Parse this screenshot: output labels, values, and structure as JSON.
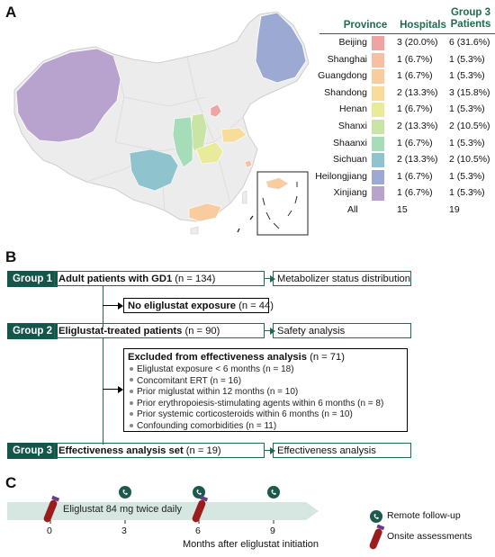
{
  "panels": {
    "a": "A",
    "b": "B",
    "c": "C"
  },
  "table": {
    "headers": {
      "province": "Province",
      "hospitals": "Hospitals",
      "group3_line1": "Group 3",
      "group3_line2": "Patients"
    },
    "rows": [
      {
        "province": "Beijing",
        "hospitals": "3 (20.0%)",
        "patients": "6 (31.6%)",
        "color": "#f1a2a2"
      },
      {
        "province": "Shanghai",
        "hospitals": "1 (6.7%)",
        "patients": "1 (5.3%)",
        "color": "#f8bfa3"
      },
      {
        "province": "Guangdong",
        "hospitals": "1 (6.7%)",
        "patients": "1 (5.3%)",
        "color": "#f9cca0"
      },
      {
        "province": "Shandong",
        "hospitals": "2 (13.3%)",
        "patients": "3 (15.8%)",
        "color": "#f7dc9a"
      },
      {
        "province": "Henan",
        "hospitals": "1 (6.7%)",
        "patients": "1 (5.3%)",
        "color": "#e8ec9a"
      },
      {
        "province": "Shanxi",
        "hospitals": "2 (13.3%)",
        "patients": "2 (10.5%)",
        "color": "#c9e4a4"
      },
      {
        "province": "Shaanxi",
        "hospitals": "1 (6.7%)",
        "patients": "1 (5.3%)",
        "color": "#a6dcb7"
      },
      {
        "province": "Sichuan",
        "hospitals": "2 (13.3%)",
        "patients": "2 (10.5%)",
        "color": "#8fc4cf"
      },
      {
        "province": "Heilongjiang",
        "hospitals": "1 (6.7%)",
        "patients": "1 (5.3%)",
        "color": "#9ba9d3"
      },
      {
        "province": "Xinjiang",
        "hospitals": "1 (6.7%)",
        "patients": "1 (5.3%)",
        "color": "#b8a3cf"
      }
    ],
    "total": {
      "province": "All",
      "hospitals": "15",
      "patients": "19"
    }
  },
  "flow": {
    "group1": {
      "tag": "Group 1",
      "bold": "Adult patients with GD1",
      "rest": " (n = 134)",
      "right": "Metabolizer status distribution"
    },
    "no_exposure": {
      "bold": "No eliglustat exposure",
      "rest": " (n = 44)"
    },
    "group2": {
      "tag": "Group 2",
      "bold": "Eliglustat-treated patients",
      "rest": " (n = 90)",
      "right": "Safety analysis"
    },
    "excluded": {
      "bold": "Excluded from effectiveness analysis",
      "rest": " (n = 71)",
      "items": [
        "Eliglustat exposure < 6 months (n = 18)",
        "Concomitant ERT (n = 16)",
        "Prior miglustat within 12 months (n = 10)",
        "Prior erythropoiesis-stimulating agents within 6 months (n = 8)",
        "Prior systemic corticosteroids within 6 months (n = 10)",
        "Confounding comorbidities (n = 11)"
      ]
    },
    "group3": {
      "tag": "Group 3",
      "bold": "Effectiveness analysis set",
      "rest": " (n = 19)",
      "right": "Effectiveness analysis"
    }
  },
  "timeline": {
    "bar_label": "Eliglustat 84 mg twice daily",
    "ticks": [
      "0",
      "3",
      "6",
      "9"
    ],
    "axis_label": "Months after eliglustat initiation",
    "legend": {
      "remote": "Remote follow-up",
      "onsite": "Onsite assessments"
    },
    "colors": {
      "bar": "#d6e6e1",
      "remote": "#1d5a4e",
      "onsite": "#9b1c1c"
    }
  }
}
